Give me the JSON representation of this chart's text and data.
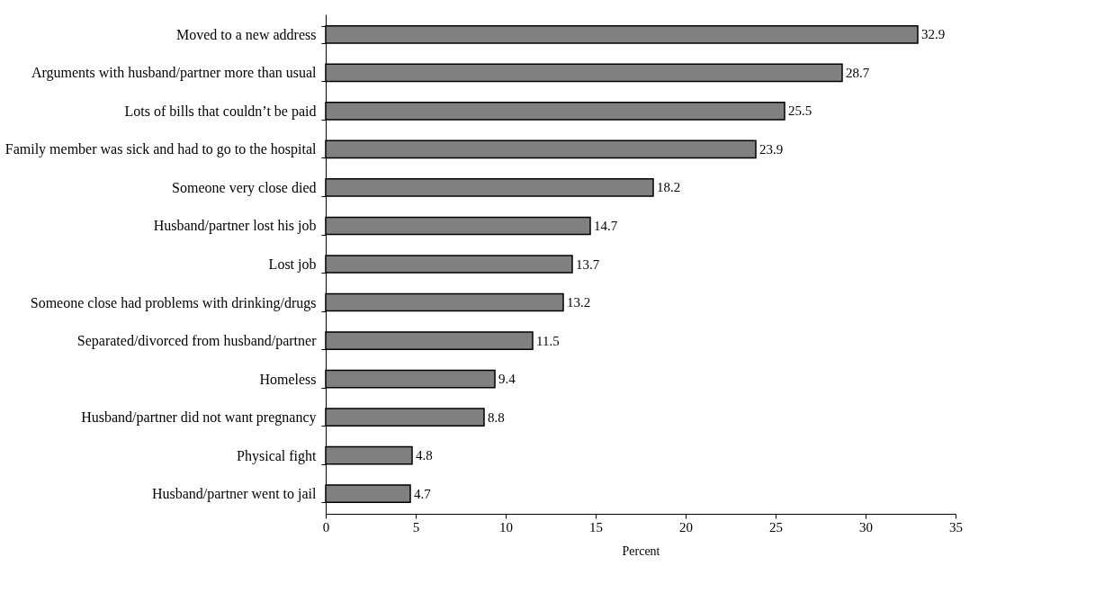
{
  "chart_data": {
    "type": "bar",
    "orientation": "horizontal",
    "xlabel": "Percent",
    "categories": [
      "Moved to a  new address",
      "Arguments with husband/partner more than usual",
      "Lots of bills that couldn’t be paid",
      "Family member was sick and had to go to the hospital",
      "Someone very close died",
      "Husband/partner lost his job",
      "Lost job",
      "Someone close had problems with drinking/drugs",
      "Separated/divorced from husband/partner",
      "Homeless",
      "Husband/partner did not want pregnancy",
      "Physical fight",
      "Husband/partner went to jail"
    ],
    "values": [
      32.9,
      28.7,
      25.5,
      23.9,
      18.2,
      14.7,
      13.7,
      13.2,
      11.5,
      9.4,
      8.8,
      4.8,
      4.7
    ],
    "color": "#808080",
    "xlim": [
      0,
      35
    ],
    "xticks": [
      0,
      5,
      10,
      15,
      20,
      25,
      30,
      35
    ],
    "data_labels": true,
    "grid": false
  }
}
